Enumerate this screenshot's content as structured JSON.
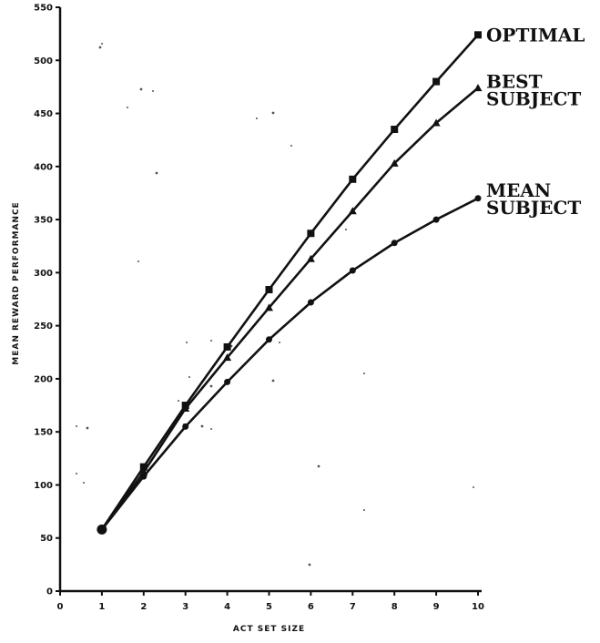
{
  "chart_data": {
    "type": "line",
    "xlabel": "ACT SET SIZE",
    "ylabel": "MEAN REWARD PERFORMANCE",
    "x": [
      1,
      2,
      3,
      4,
      5,
      6,
      7,
      8,
      9,
      10
    ],
    "xlim": [
      0,
      10
    ],
    "ylim": [
      0,
      550
    ],
    "xticks": [
      "0",
      "1",
      "2",
      "3",
      "4",
      "5",
      "6",
      "7",
      "8",
      "9",
      "10"
    ],
    "yticks": [
      "0",
      "50",
      "100",
      "150",
      "200",
      "250",
      "300",
      "350",
      "400",
      "450",
      "500",
      "550"
    ],
    "grid": false,
    "legend": "series labels at right end of each line",
    "series": [
      {
        "name": "OPTIMAL",
        "label_lines": [
          "OPTIMAL"
        ],
        "marker": "square",
        "values": [
          58,
          117,
          175,
          230,
          284,
          337,
          388,
          435,
          480,
          524
        ]
      },
      {
        "name": "BEST SUBJECT",
        "label_lines": [
          "BEST",
          "SUBJECT"
        ],
        "marker": "triangle",
        "values": [
          58,
          112,
          172,
          220,
          267,
          313,
          358,
          403,
          441,
          474
        ]
      },
      {
        "name": "MEAN SUBJECT",
        "label_lines": [
          "MEAN",
          "SUBJECT"
        ],
        "marker": "circle",
        "values": [
          58,
          108,
          155,
          197,
          237,
          272,
          302,
          328,
          350,
          370
        ]
      }
    ]
  }
}
